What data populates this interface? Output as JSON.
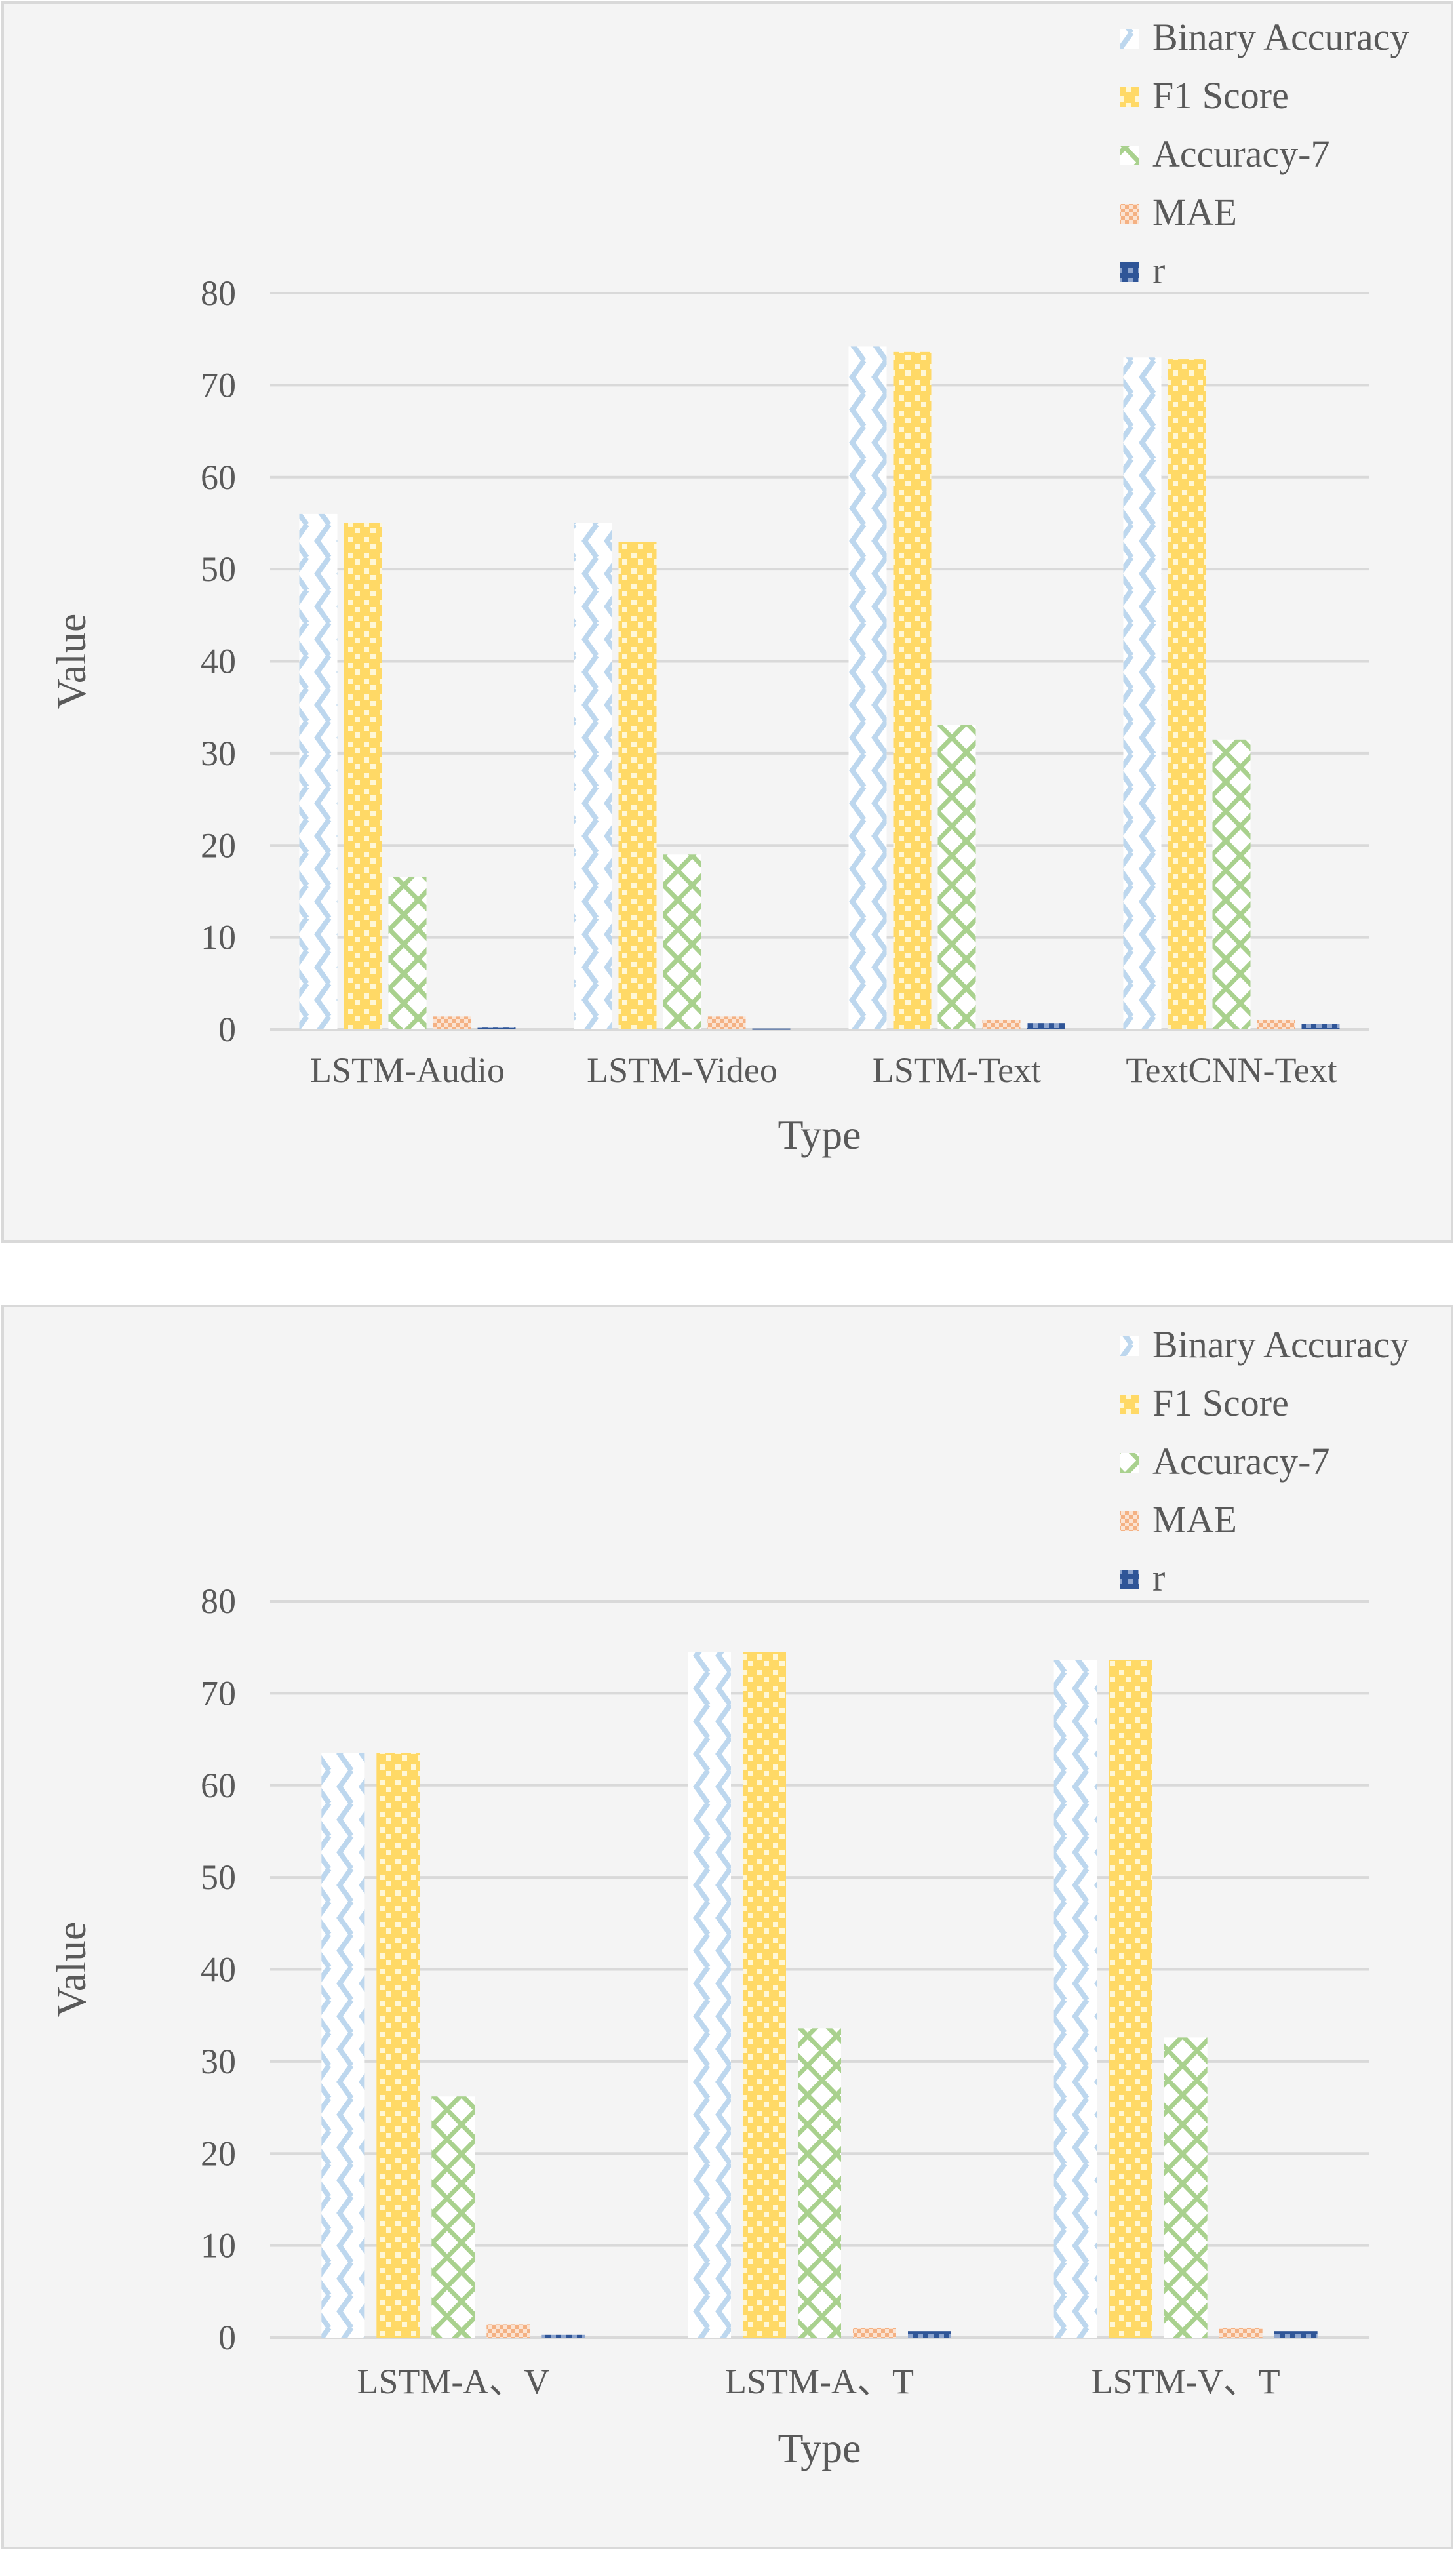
{
  "colors": {
    "binary_accuracy": "#bdd7ee",
    "f1_score": "#ffd966",
    "accuracy_7": "#a9d18e",
    "mae": "#f4b183",
    "r": "#2f5597",
    "grid": "#d9d9d9",
    "text": "#595959"
  },
  "chart_data": [
    {
      "type": "bar",
      "title": "",
      "xlabel": "Type",
      "ylabel": "Value",
      "ylim": [
        0,
        80
      ],
      "yticks": [
        0,
        10,
        20,
        30,
        40,
        50,
        60,
        70,
        80
      ],
      "grid": true,
      "legend": "top-right",
      "categories": [
        "LSTM-Audio",
        "LSTM-Video",
        "LSTM-Text",
        "TextCNN-Text"
      ],
      "series": [
        {
          "name": "Binary Accuracy",
          "values": [
            56.0,
            55.0,
            74.2,
            73.0
          ]
        },
        {
          "name": "F1 Score",
          "values": [
            55.0,
            53.0,
            73.6,
            72.8
          ]
        },
        {
          "name": "Accuracy-7",
          "values": [
            16.6,
            19.0,
            33.1,
            31.5
          ]
        },
        {
          "name": "MAE",
          "values": [
            1.4,
            1.4,
            1.0,
            1.0
          ]
        },
        {
          "name": "r",
          "values": [
            0.2,
            0.1,
            0.7,
            0.6
          ]
        }
      ]
    },
    {
      "type": "bar",
      "title": "",
      "xlabel": "Type",
      "ylabel": "Value",
      "ylim": [
        0,
        80
      ],
      "yticks": [
        0,
        10,
        20,
        30,
        40,
        50,
        60,
        70,
        80
      ],
      "grid": true,
      "legend": "top-right",
      "categories": [
        "LSTM-A、V",
        "LSTM-A、T",
        "LSTM-V、T"
      ],
      "series": [
        {
          "name": "Binary Accuracy",
          "values": [
            63.5,
            74.5,
            73.6
          ]
        },
        {
          "name": "F1 Score",
          "values": [
            63.5,
            74.5,
            73.6
          ]
        },
        {
          "name": "Accuracy-7",
          "values": [
            26.2,
            33.6,
            32.6
          ]
        },
        {
          "name": "MAE",
          "values": [
            1.4,
            1.0,
            1.0
          ]
        },
        {
          "name": "r",
          "values": [
            0.3,
            0.7,
            0.7
          ]
        }
      ]
    }
  ]
}
